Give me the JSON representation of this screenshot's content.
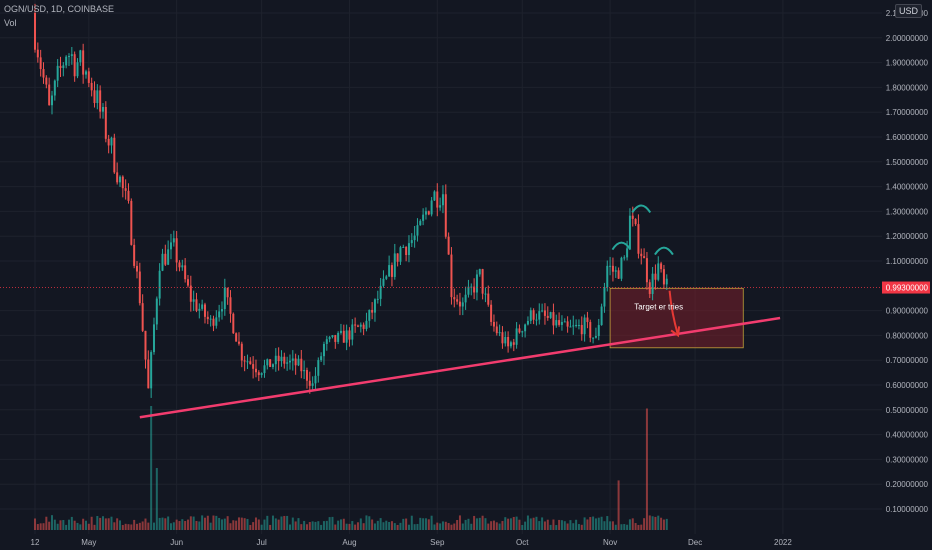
{
  "header": {
    "symbol_line": "OGN/USD, 1D, COINBASE",
    "volume_label": "Vol",
    "currency_button": "USD"
  },
  "colors": {
    "background": "#131722",
    "grid": "#1e222d",
    "up": "#26a69a",
    "down": "#ef5350",
    "trendline": "#f23c6e",
    "price_line": "#f23645",
    "zone_fill": "#7a1f2a",
    "zone_border": "#c4a23a",
    "head_shoulder_marks": "#26a69a",
    "arrow": "#e53935",
    "axis_text": "#b2b5be"
  },
  "chart_data": {
    "type": "candlestick",
    "title": "OGN/USD, 1D, COINBASE",
    "currency": "USD",
    "y_axis": {
      "ticks": [
        "2.10000000",
        "2.00000000",
        "1.90000000",
        "1.80000000",
        "1.70000000",
        "1.60000000",
        "1.50000000",
        "1.40000000",
        "1.30000000",
        "1.20000000",
        "1.10000000",
        "0.90000000",
        "0.80000000",
        "0.70000000",
        "0.60000000",
        "0.50000000",
        "0.40000000",
        "0.30000000",
        "0.20000000",
        "0.10000000"
      ],
      "range": [
        0.0,
        2.1
      ],
      "current_price": 0.993,
      "current_price_label": "0.99300000"
    },
    "x_axis": {
      "ticks": [
        "12",
        "May",
        "Jun",
        "Jul",
        "Aug",
        "Sep",
        "Oct",
        "Nov",
        "Dec",
        "2022"
      ]
    },
    "price_path": [
      {
        "x": "2021-04-12",
        "y": 2.1
      },
      {
        "x": "2021-04-18",
        "y": 1.7
      },
      {
        "x": "2021-04-24",
        "y": 1.95
      },
      {
        "x": "2021-05-02",
        "y": 1.85
      },
      {
        "x": "2021-05-10",
        "y": 1.55
      },
      {
        "x": "2021-05-16",
        "y": 1.3
      },
      {
        "x": "2021-05-20",
        "y": 0.95
      },
      {
        "x": "2021-05-23",
        "y": 0.58
      },
      {
        "x": "2021-05-27",
        "y": 1.1
      },
      {
        "x": "2021-06-01",
        "y": 1.15
      },
      {
        "x": "2021-06-07",
        "y": 0.95
      },
      {
        "x": "2021-06-14",
        "y": 0.85
      },
      {
        "x": "2021-06-19",
        "y": 0.96
      },
      {
        "x": "2021-06-25",
        "y": 0.72
      },
      {
        "x": "2021-07-01",
        "y": 0.66
      },
      {
        "x": "2021-07-08",
        "y": 0.7
      },
      {
        "x": "2021-07-15",
        "y": 0.68
      },
      {
        "x": "2021-07-20",
        "y": 0.6
      },
      {
        "x": "2021-07-24",
        "y": 0.76
      },
      {
        "x": "2021-08-01",
        "y": 0.8
      },
      {
        "x": "2021-08-08",
        "y": 0.85
      },
      {
        "x": "2021-08-15",
        "y": 1.02
      },
      {
        "x": "2021-08-20",
        "y": 1.15
      },
      {
        "x": "2021-08-26",
        "y": 1.2
      },
      {
        "x": "2021-08-31",
        "y": 1.36
      },
      {
        "x": "2021-09-04",
        "y": 1.38
      },
      {
        "x": "2021-09-07",
        "y": 0.98
      },
      {
        "x": "2021-09-11",
        "y": 0.92
      },
      {
        "x": "2021-09-17",
        "y": 1.04
      },
      {
        "x": "2021-09-21",
        "y": 0.85
      },
      {
        "x": "2021-09-27",
        "y": 0.75
      },
      {
        "x": "2021-10-02",
        "y": 0.84
      },
      {
        "x": "2021-10-06",
        "y": 0.89
      },
      {
        "x": "2021-10-12",
        "y": 0.86
      },
      {
        "x": "2021-10-18",
        "y": 0.82
      },
      {
        "x": "2021-10-24",
        "y": 0.84
      },
      {
        "x": "2021-10-28",
        "y": 0.78
      },
      {
        "x": "2021-11-01",
        "y": 1.08
      },
      {
        "x": "2021-11-04",
        "y": 1.05
      },
      {
        "x": "2021-11-07",
        "y": 1.1
      },
      {
        "x": "2021-11-09",
        "y": 1.27
      },
      {
        "x": "2021-11-13",
        "y": 1.14
      },
      {
        "x": "2021-11-16",
        "y": 1.0
      },
      {
        "x": "2021-11-19",
        "y": 1.08
      },
      {
        "x": "2021-11-21",
        "y": 0.99
      }
    ],
    "volume": {
      "spikes": [
        {
          "x": "2021-05-23",
          "y": 0.5
        },
        {
          "x": "2021-05-25",
          "y": 0.25
        },
        {
          "x": "2021-11-04",
          "y": 0.2
        },
        {
          "x": "2021-11-14",
          "y": 0.49
        }
      ]
    },
    "annotations": {
      "trendline": {
        "from": {
          "x": "2021-05-19",
          "y": 0.47
        },
        "to": {
          "x": "2021-12-31",
          "y": 0.87
        }
      },
      "target_zone": {
        "x_start": "2021-11-01",
        "x_end": "2021-12-18",
        "y_low": 0.75,
        "y_high": 0.99
      },
      "target_text": "Target er tries",
      "head_and_shoulders": [
        {
          "x": "2021-11-05",
          "y": 1.17
        },
        {
          "x": "2021-11-12",
          "y": 1.32
        },
        {
          "x": "2021-11-20",
          "y": 1.15
        }
      ],
      "arrow": {
        "from": {
          "x": "2021-11-22",
          "y": 0.98
        },
        "to": {
          "x": "2021-11-25",
          "y": 0.8
        }
      }
    }
  }
}
